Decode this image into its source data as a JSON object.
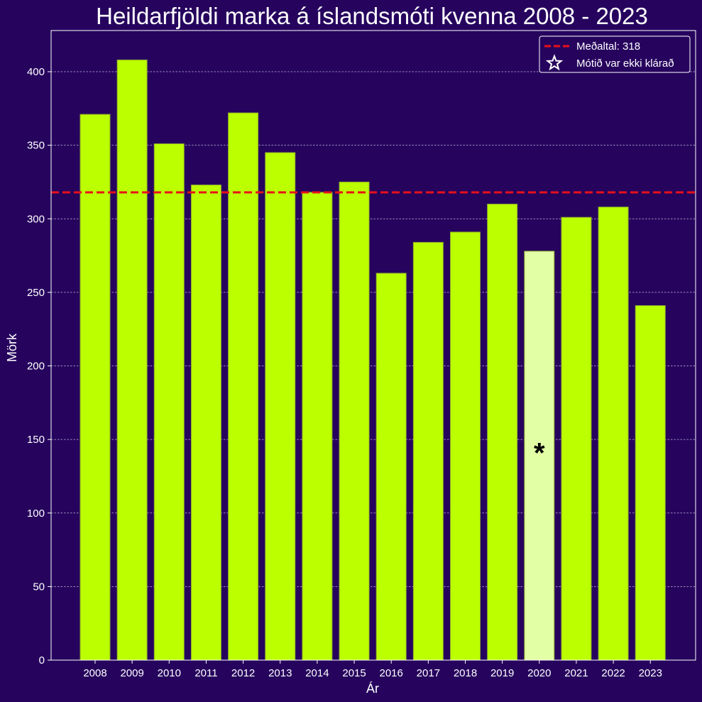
{
  "chart_data": {
    "type": "bar",
    "title": "Heildarfjöldi marka á íslandsmóti kvenna 2008 - 2023",
    "xlabel": "Ár",
    "ylabel": "Mörk",
    "categories": [
      "2008",
      "2009",
      "2010",
      "2011",
      "2012",
      "2013",
      "2014",
      "2015",
      "2016",
      "2017",
      "2018",
      "2019",
      "2020",
      "2021",
      "2022",
      "2023"
    ],
    "values": [
      371,
      408,
      351,
      323,
      372,
      345,
      318,
      325,
      263,
      284,
      291,
      310,
      278,
      301,
      308,
      241
    ],
    "ylim": [
      0,
      428
    ],
    "yticks": [
      0,
      50,
      100,
      150,
      200,
      250,
      300,
      350,
      400
    ],
    "grid": "horizontal",
    "mean_line": {
      "value": 318,
      "label": "Meðaltal: 318",
      "color": "#e8101a"
    },
    "highlight": {
      "category": "2020",
      "marker": "*",
      "legend_label": "Mótið var ekki klárað",
      "marker_y": 145
    },
    "legend_position": "top-right",
    "colors": {
      "background": "#26045e",
      "bar": "#bbff00",
      "bar_highlight": "#e2ffa6",
      "bar_edge": "#8fa82c",
      "axes": "#ffffff",
      "grid": "#bfb6d6",
      "legend_bg": "#26045e"
    }
  }
}
